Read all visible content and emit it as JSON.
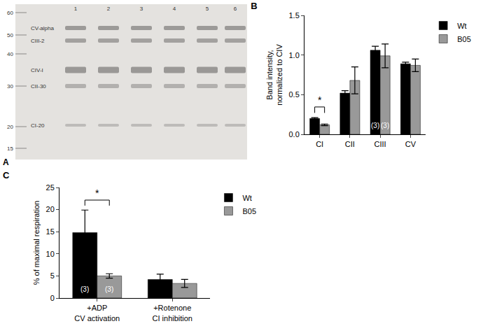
{
  "chart_data": [
    {
      "type": "bar",
      "title": "B",
      "y_label": "Band intensity,\nnormalized to CIV",
      "categories": [
        "CI",
        "CII",
        "CIII",
        "CV"
      ],
      "series": [
        {
          "name": "Wt",
          "color": "#000000",
          "values": [
            0.2,
            0.52,
            1.06,
            0.89
          ],
          "errors": [
            0.01,
            0.03,
            0.05,
            0.02
          ]
        },
        {
          "name": "B05",
          "color": "#999999",
          "values": [
            0.12,
            0.68,
            0.99,
            0.87
          ],
          "errors": [
            0.01,
            0.17,
            0.15,
            0.08
          ]
        }
      ],
      "ylim": [
        0,
        1.5
      ],
      "yticks": [
        {
          "value": 0,
          "label": "0.0"
        },
        {
          "value": 0.5,
          "label": "0.5"
        },
        {
          "value": 1,
          "label": "1.0"
        },
        {
          "value": 1.5,
          "label": "1.5"
        }
      ],
      "grid": false,
      "legend": "top right",
      "significance": [
        {
          "text": "*",
          "category": "CI"
        }
      ],
      "annotations": [
        {
          "text": "(3)",
          "category": "CIII",
          "series": "Wt"
        },
        {
          "text": "(3)",
          "category": "CIII",
          "series": "B05"
        }
      ]
    },
    {
      "type": "bar",
      "title": "C",
      "y_label": "% of maximal respiration",
      "categories": [
        "+ADP\nCV activation",
        "+Rotenone\nCI inhibition"
      ],
      "series": [
        {
          "name": "Wt",
          "color": "#000000",
          "values": [
            14.8,
            4.2
          ],
          "errors": [
            5.1,
            1.2
          ]
        },
        {
          "name": "B05",
          "color": "#999999",
          "values": [
            5.0,
            3.3
          ],
          "errors": [
            0.5,
            0.9
          ]
        }
      ],
      "ylim": [
        0,
        25
      ],
      "yticks": [
        0,
        5,
        10,
        15,
        20,
        25
      ],
      "grid": false,
      "legend": "top right",
      "significance": [
        {
          "text": "*",
          "category": "+ADP\nCV activation"
        }
      ],
      "annotations": [
        {
          "text": "(3)",
          "category": "+ADP\nCV activation",
          "series": "Wt"
        },
        {
          "text": "(3)",
          "category": "+ADP\nCV activation",
          "series": "B05"
        }
      ]
    }
  ],
  "blot": {
    "title": "A",
    "lanes": [
      1,
      2,
      3,
      4,
      5,
      6
    ],
    "markers": [
      60,
      50,
      40,
      30,
      20,
      15
    ],
    "bands": [
      "CV-alpha",
      "CIII-2",
      "CIV-I",
      "CII-30",
      "CI-20"
    ]
  }
}
